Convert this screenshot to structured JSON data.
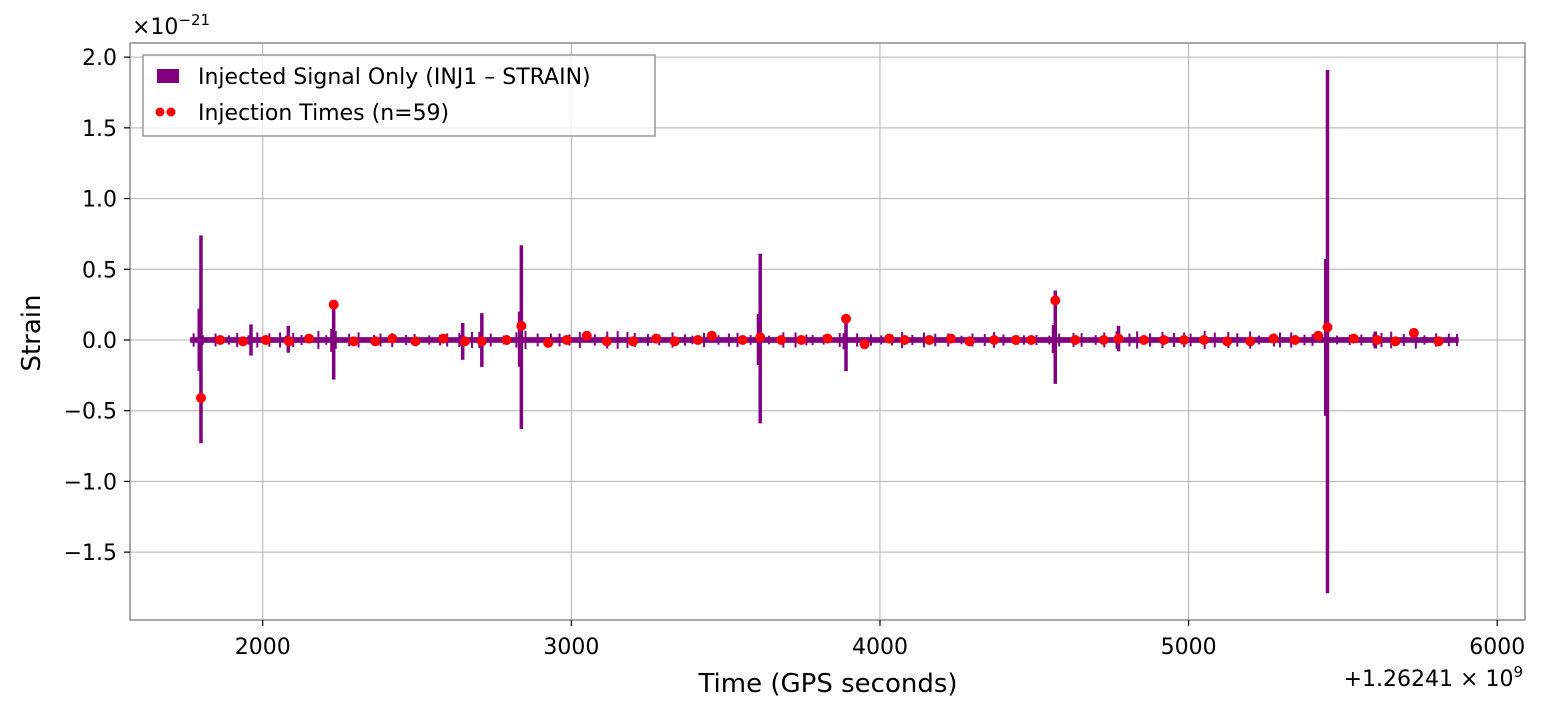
{
  "chart_data": {
    "type": "line",
    "xlabel": "Time (GPS seconds)",
    "ylabel": "Strain",
    "x_offset_label": "+1.26241 × 10",
    "x_offset_exp": "9",
    "y_scale_label": "×10",
    "y_scale_exp": "−21",
    "x_offset": 1262410000,
    "y_scale": 1e-21,
    "xlim": [
      1570,
      6090
    ],
    "ylim": [
      -1.98,
      2.1
    ],
    "xticks": [
      2000,
      3000,
      4000,
      5000,
      6000
    ],
    "xtick_labels": [
      "2000",
      "3000",
      "4000",
      "5000",
      "6000"
    ],
    "yticks": [
      -1.5,
      -1.0,
      -0.5,
      0.0,
      0.5,
      1.0,
      1.5,
      2.0
    ],
    "ytick_labels": [
      "−1.5",
      "−1.0",
      "−0.5",
      "0.0",
      "0.5",
      "1.0",
      "1.5",
      "2.0"
    ],
    "grid": true,
    "legend_position": "top-left",
    "series": [
      {
        "name": "Injected Signal Only (INJ1 – STRAIN)",
        "type": "line",
        "color": "#800080",
        "x_range": [
          1765,
          5875
        ],
        "baseline": 0.0,
        "noise_band": 0.02,
        "spikes": [
          {
            "x": 1800,
            "max": 0.74,
            "min": -0.73
          },
          {
            "x": 1962,
            "max": 0.11,
            "min": -0.11
          },
          {
            "x": 2083,
            "max": 0.1,
            "min": -0.09
          },
          {
            "x": 2230,
            "max": 0.26,
            "min": -0.28
          },
          {
            "x": 2648,
            "max": 0.12,
            "min": -0.14
          },
          {
            "x": 2710,
            "max": 0.19,
            "min": -0.19
          },
          {
            "x": 2838,
            "max": 0.67,
            "min": -0.63
          },
          {
            "x": 3612,
            "max": 0.61,
            "min": -0.59
          },
          {
            "x": 3890,
            "max": 0.16,
            "min": -0.22
          },
          {
            "x": 4568,
            "max": 0.35,
            "min": -0.31
          },
          {
            "x": 4773,
            "max": 0.1,
            "min": -0.08
          },
          {
            "x": 5450,
            "max": 1.91,
            "min": -1.79
          },
          {
            "x": 5605,
            "max": 0.06,
            "min": -0.06
          }
        ]
      },
      {
        "name": "Injection Times (n=59)",
        "type": "scatter",
        "color": "#ff0000",
        "x": [
          1800,
          1862,
          1936,
          2010,
          2085,
          2150,
          2230,
          2295,
          2365,
          2420,
          2495,
          2585,
          2655,
          2710,
          2790,
          2838,
          2925,
          2985,
          3050,
          3115,
          3200,
          3275,
          3335,
          3410,
          3455,
          3555,
          3612,
          3680,
          3745,
          3830,
          3890,
          3950,
          4030,
          4080,
          4160,
          4230,
          4290,
          4370,
          4440,
          4490,
          4568,
          4633,
          4725,
          4773,
          4855,
          4920,
          4985,
          5050,
          5125,
          5200,
          5275,
          5345,
          5420,
          5450,
          5535,
          5610,
          5670,
          5730,
          5810
        ],
        "y": [
          -0.41,
          0.0,
          -0.01,
          0.0,
          -0.01,
          0.01,
          0.25,
          -0.01,
          -0.01,
          0.01,
          -0.01,
          0.01,
          -0.01,
          -0.01,
          0.0,
          0.1,
          -0.02,
          0.0,
          0.03,
          -0.01,
          -0.01,
          0.01,
          -0.01,
          0.0,
          0.03,
          0.0,
          0.02,
          0.0,
          0.0,
          0.01,
          0.15,
          -0.03,
          0.01,
          0.0,
          0.0,
          0.01,
          -0.01,
          0.0,
          0.0,
          0.0,
          0.28,
          0.0,
          0.0,
          0.01,
          0.0,
          0.0,
          0.0,
          0.0,
          -0.01,
          -0.01,
          0.01,
          0.0,
          0.03,
          0.09,
          0.01,
          0.0,
          -0.01,
          0.05,
          -0.01
        ]
      }
    ]
  }
}
